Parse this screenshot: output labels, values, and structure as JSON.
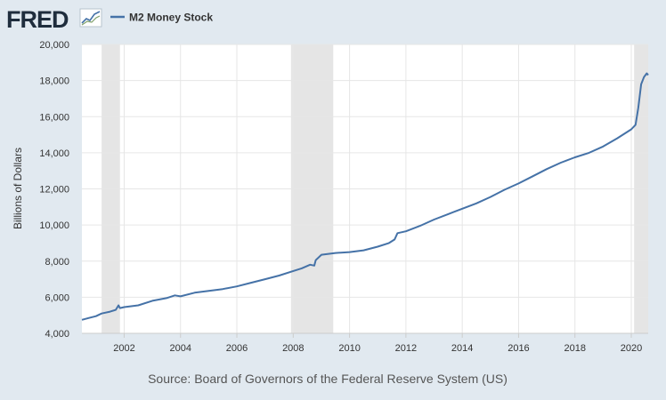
{
  "header": {
    "brand": "FRED",
    "legend_label": "M2 Money Stock",
    "brand_color": "#1f2d3d",
    "series_color": "#4572a7"
  },
  "footer": {
    "source": "Source: Board of Governors of the Federal Reserve System (US)"
  },
  "chart_data": {
    "type": "line",
    "title": "",
    "ylabel": "Billions of Dollars",
    "xlabel": "",
    "xlim": [
      2000.5,
      2020.6
    ],
    "ylim": [
      4000,
      20000
    ],
    "yticks": [
      4000,
      6000,
      8000,
      10000,
      12000,
      14000,
      16000,
      18000,
      20000
    ],
    "ytick_labels": [
      "4,000",
      "6,000",
      "8,000",
      "10,000",
      "12,000",
      "14,000",
      "16,000",
      "18,000",
      "20,000"
    ],
    "xticks": [
      2002,
      2004,
      2006,
      2008,
      2010,
      2012,
      2014,
      2016,
      2018,
      2020
    ],
    "xtick_labels": [
      "2002",
      "2004",
      "2006",
      "2008",
      "2010",
      "2012",
      "2014",
      "2016",
      "2018",
      "2020"
    ],
    "grid": true,
    "legend": "top-left",
    "recessions": [
      [
        2001.2,
        2001.85
      ],
      [
        2007.92,
        2009.42
      ],
      [
        2020.1,
        2020.6
      ]
    ],
    "series": [
      {
        "name": "M2 Money Stock",
        "color": "#4572a7",
        "x": [
          2000.5,
          2000.75,
          2001.0,
          2001.2,
          2001.5,
          2001.7,
          2001.8,
          2001.85,
          2002.0,
          2002.5,
          2003.0,
          2003.5,
          2003.8,
          2004.0,
          2004.5,
          2005.0,
          2005.5,
          2006.0,
          2006.5,
          2007.0,
          2007.5,
          2008.0,
          2008.3,
          2008.6,
          2008.75,
          2008.8,
          2009.0,
          2009.5,
          2010.0,
          2010.5,
          2011.0,
          2011.4,
          2011.6,
          2011.7,
          2012.0,
          2012.5,
          2013.0,
          2013.5,
          2014.0,
          2014.5,
          2015.0,
          2015.5,
          2016.0,
          2016.5,
          2017.0,
          2017.5,
          2018.0,
          2018.5,
          2019.0,
          2019.5,
          2020.0,
          2020.15,
          2020.25,
          2020.35,
          2020.45,
          2020.55,
          2020.6
        ],
        "values": [
          4750,
          4850,
          4950,
          5100,
          5200,
          5300,
          5550,
          5400,
          5450,
          5550,
          5800,
          5950,
          6100,
          6050,
          6250,
          6350,
          6450,
          6600,
          6800,
          7000,
          7200,
          7450,
          7600,
          7800,
          7750,
          8050,
          8350,
          8450,
          8500,
          8600,
          8800,
          9000,
          9200,
          9550,
          9650,
          9950,
          10300,
          10600,
          10900,
          11200,
          11550,
          11950,
          12300,
          12700,
          13100,
          13450,
          13750,
          14000,
          14350,
          14800,
          15300,
          15550,
          16500,
          17800,
          18200,
          18400,
          18300
        ]
      }
    ]
  }
}
